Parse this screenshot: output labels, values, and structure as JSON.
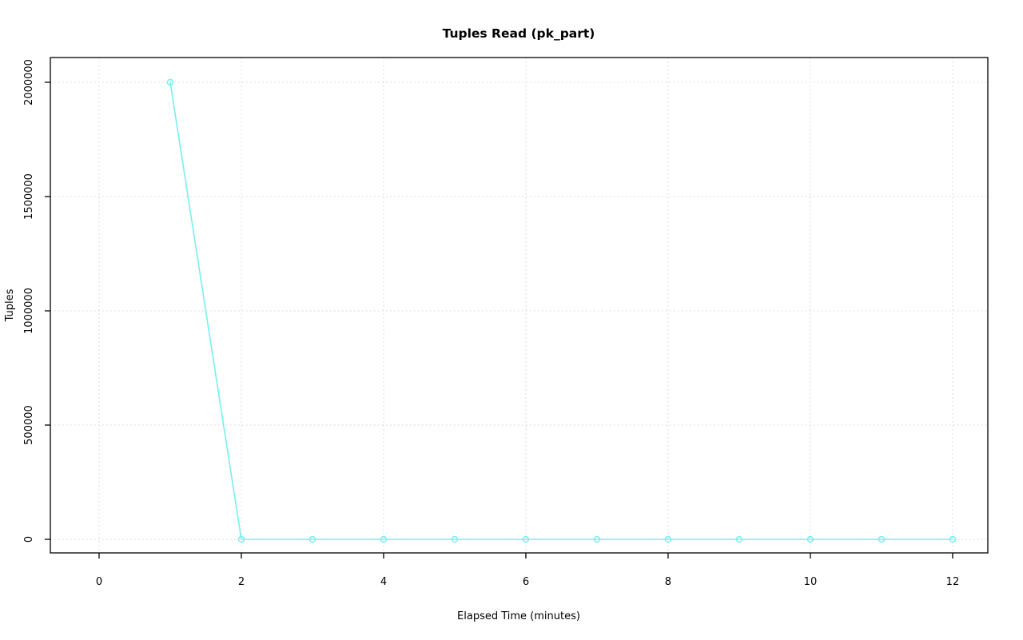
{
  "chart_data": {
    "type": "line",
    "title": "Tuples Read (pk_part)",
    "xlabel": "Elapsed Time (minutes)",
    "ylabel": "Tuples",
    "x": [
      1,
      2,
      3,
      4,
      5,
      6,
      7,
      8,
      9,
      10,
      11,
      12
    ],
    "values": [
      2000000,
      0,
      0,
      0,
      0,
      0,
      0,
      0,
      0,
      0,
      0,
      0
    ],
    "xticks": [
      0,
      2,
      4,
      6,
      8,
      10,
      12
    ],
    "yticks": [
      0,
      500000,
      1000000,
      1500000,
      2000000
    ],
    "xlim": [
      -0.685,
      12.495
    ],
    "ylim": [
      -59400,
      2108400
    ],
    "grid": true,
    "legend": "none",
    "colors": {
      "series": "#76efef",
      "grid": "#d3d3d3",
      "axis": "#000000",
      "background": "#ffffff",
      "text": "#000000"
    }
  }
}
